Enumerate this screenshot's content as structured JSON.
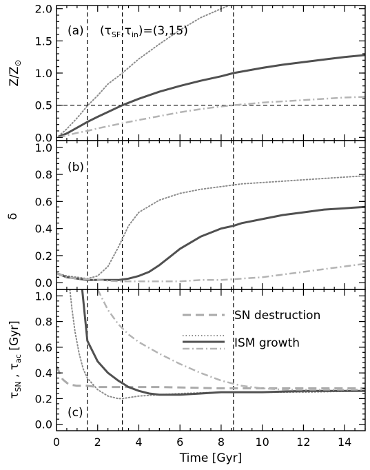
{
  "figure": {
    "xlabel": "Time [Gyr]",
    "x_ticks": [
      0,
      2,
      4,
      6,
      8,
      10,
      12,
      14
    ],
    "xlim": [
      0,
      15
    ]
  },
  "chart_data": [
    {
      "type": "line",
      "panel_label": "(a)",
      "annotation": "(τ_SF, τ_in) = (3, 15)",
      "ylabel": "Z/Z⊙",
      "ylim": [
        -0.05,
        2.05
      ],
      "y_ticks": [
        0.0,
        0.5,
        1.0,
        1.5,
        2.0
      ],
      "y_tick_labels": [
        "0.0",
        "0.5",
        "1.0",
        "1.5",
        "2.0"
      ],
      "vlines": [
        1.5,
        3.2,
        8.6
      ],
      "hlines": [
        0.5
      ],
      "series": [
        {
          "style": "dotted",
          "color": "#8c8c8c",
          "x": [
            0.1,
            0.5,
            1.0,
            1.5,
            2.0,
            2.5,
            3.0,
            3.2,
            4.0,
            5.0,
            6.0,
            7.0,
            8.0,
            8.6
          ],
          "y": [
            0.02,
            0.13,
            0.3,
            0.49,
            0.65,
            0.83,
            0.95,
            1.0,
            1.22,
            1.45,
            1.67,
            1.86,
            2.0,
            2.08
          ]
        },
        {
          "style": "solid",
          "color": "#505050",
          "x": [
            0.1,
            0.5,
            1.0,
            1.5,
            2.0,
            3.2,
            4.0,
            5.0,
            6.0,
            7.0,
            8.0,
            8.6,
            10.0,
            11.0,
            12.0,
            13.0,
            14.0,
            15.0
          ],
          "y": [
            0.01,
            0.06,
            0.15,
            0.24,
            0.32,
            0.5,
            0.6,
            0.71,
            0.8,
            0.88,
            0.95,
            1.0,
            1.08,
            1.13,
            1.17,
            1.21,
            1.25,
            1.28
          ]
        },
        {
          "style": "dashdot",
          "color": "#b4b4b4",
          "x": [
            0.1,
            0.5,
            1.0,
            1.5,
            2.0,
            3.2,
            4.0,
            5.0,
            6.0,
            7.0,
            8.0,
            8.6,
            10.0,
            12.0,
            14.0,
            15.0
          ],
          "y": [
            0.0,
            0.03,
            0.07,
            0.1,
            0.14,
            0.22,
            0.27,
            0.33,
            0.39,
            0.44,
            0.48,
            0.5,
            0.54,
            0.58,
            0.62,
            0.63
          ]
        }
      ]
    },
    {
      "type": "line",
      "panel_label": "(b)",
      "ylabel": "δ",
      "ylim": [
        -0.05,
        1.05
      ],
      "y_ticks": [
        0.0,
        0.2,
        0.4,
        0.6,
        0.8,
        1.0
      ],
      "y_tick_labels": [
        "0.0",
        "0.2",
        "0.4",
        "0.6",
        "0.8",
        "1.0"
      ],
      "vlines": [
        1.5,
        3.2,
        8.6
      ],
      "series": [
        {
          "style": "dotted",
          "color": "#8c8c8c",
          "x": [
            0.0,
            0.5,
            1.0,
            1.5,
            2.0,
            2.5,
            3.0,
            3.5,
            4.0,
            5.0,
            6.0,
            7.0,
            8.0,
            9.0,
            10.0,
            12.0,
            14.0,
            15.0
          ],
          "y": [
            0.07,
            0.05,
            0.04,
            0.03,
            0.05,
            0.12,
            0.26,
            0.42,
            0.52,
            0.61,
            0.66,
            0.69,
            0.71,
            0.73,
            0.74,
            0.76,
            0.78,
            0.79
          ]
        },
        {
          "style": "solid",
          "color": "#505050",
          "x": [
            0.0,
            0.5,
            1.0,
            1.5,
            2.0,
            3.0,
            3.5,
            4.0,
            4.5,
            5.0,
            5.5,
            6.0,
            7.0,
            8.0,
            8.6,
            9.0,
            10.0,
            11.0,
            12.0,
            13.0,
            14.0,
            15.0
          ],
          "y": [
            0.07,
            0.04,
            0.03,
            0.02,
            0.02,
            0.02,
            0.03,
            0.05,
            0.08,
            0.13,
            0.19,
            0.25,
            0.34,
            0.4,
            0.42,
            0.44,
            0.47,
            0.5,
            0.52,
            0.54,
            0.55,
            0.56
          ]
        },
        {
          "style": "dashdot",
          "color": "#b4b4b4",
          "x": [
            0.0,
            0.5,
            1.0,
            2.0,
            3.0,
            4.0,
            5.0,
            6.0,
            7.0,
            8.0,
            9.0,
            10.0,
            11.0,
            12.0,
            13.0,
            14.0,
            15.0
          ],
          "y": [
            0.07,
            0.04,
            0.03,
            0.02,
            0.01,
            0.01,
            0.01,
            0.01,
            0.02,
            0.02,
            0.03,
            0.04,
            0.06,
            0.08,
            0.1,
            0.12,
            0.14
          ]
        }
      ]
    },
    {
      "type": "line",
      "panel_label": "(c)",
      "ylabel": "τ_SN , τ_ac [Gyr]",
      "ylim": [
        -0.05,
        1.05
      ],
      "y_ticks": [
        0.0,
        0.2,
        0.4,
        0.6,
        0.8,
        1.0
      ],
      "y_tick_labels": [
        "0.0",
        "0.2",
        "0.4",
        "0.6",
        "0.8",
        "1.0"
      ],
      "vlines": [
        1.5,
        3.2,
        8.6
      ],
      "legend": {
        "placement": "top-right",
        "entries": [
          {
            "label": "SN destruction",
            "style": "dashed",
            "color": "#aaaaaa",
            "targets": [
              0
            ]
          },
          {
            "label": "ISM growth",
            "style": "dotted,solid,dashdot",
            "colors": [
              "#8c8c8c",
              "#505050",
              "#b4b4b4"
            ]
          }
        ]
      },
      "series": [
        {
          "style": "dashed",
          "color": "#aaaaaa",
          "x": [
            0.0,
            0.3,
            0.6,
            1.0,
            1.5,
            2.0,
            3.0,
            5.0,
            8.0,
            12.0,
            15.0
          ],
          "y": [
            0.45,
            0.35,
            0.31,
            0.3,
            0.3,
            0.29,
            0.29,
            0.29,
            0.28,
            0.28,
            0.28
          ]
        },
        {
          "style": "dotted",
          "color": "#8c8c8c",
          "x": [
            0.65,
            0.75,
            0.9,
            1.1,
            1.3,
            1.5,
            2.0,
            2.5,
            3.0,
            3.2,
            3.6,
            4.0,
            5.0,
            6.0,
            8.0,
            10.0,
            12.0,
            15.0
          ],
          "y": [
            1.05,
            0.9,
            0.72,
            0.55,
            0.43,
            0.36,
            0.27,
            0.22,
            0.2,
            0.2,
            0.21,
            0.22,
            0.23,
            0.24,
            0.25,
            0.25,
            0.25,
            0.26
          ]
        },
        {
          "style": "solid",
          "color": "#505050",
          "x": [
            1.25,
            1.5,
            2.0,
            2.5,
            3.0,
            3.2,
            3.5,
            4.0,
            4.5,
            5.0,
            5.5,
            6.0,
            7.0,
            8.0,
            9.0,
            10.0,
            12.0,
            14.0,
            15.0
          ],
          "y": [
            1.05,
            0.65,
            0.49,
            0.4,
            0.34,
            0.32,
            0.29,
            0.26,
            0.24,
            0.23,
            0.23,
            0.23,
            0.24,
            0.25,
            0.25,
            0.25,
            0.26,
            0.26,
            0.26
          ]
        },
        {
          "style": "dashdot",
          "color": "#b4b4b4",
          "x": [
            2.0,
            2.5,
            3.0,
            3.5,
            4.0,
            5.0,
            6.0,
            7.0,
            8.0,
            9.0,
            10.0,
            11.0,
            12.0,
            13.0,
            14.0,
            15.0
          ],
          "y": [
            1.05,
            0.89,
            0.78,
            0.7,
            0.64,
            0.55,
            0.47,
            0.4,
            0.34,
            0.3,
            0.28,
            0.27,
            0.27,
            0.27,
            0.27,
            0.27
          ]
        }
      ]
    }
  ]
}
